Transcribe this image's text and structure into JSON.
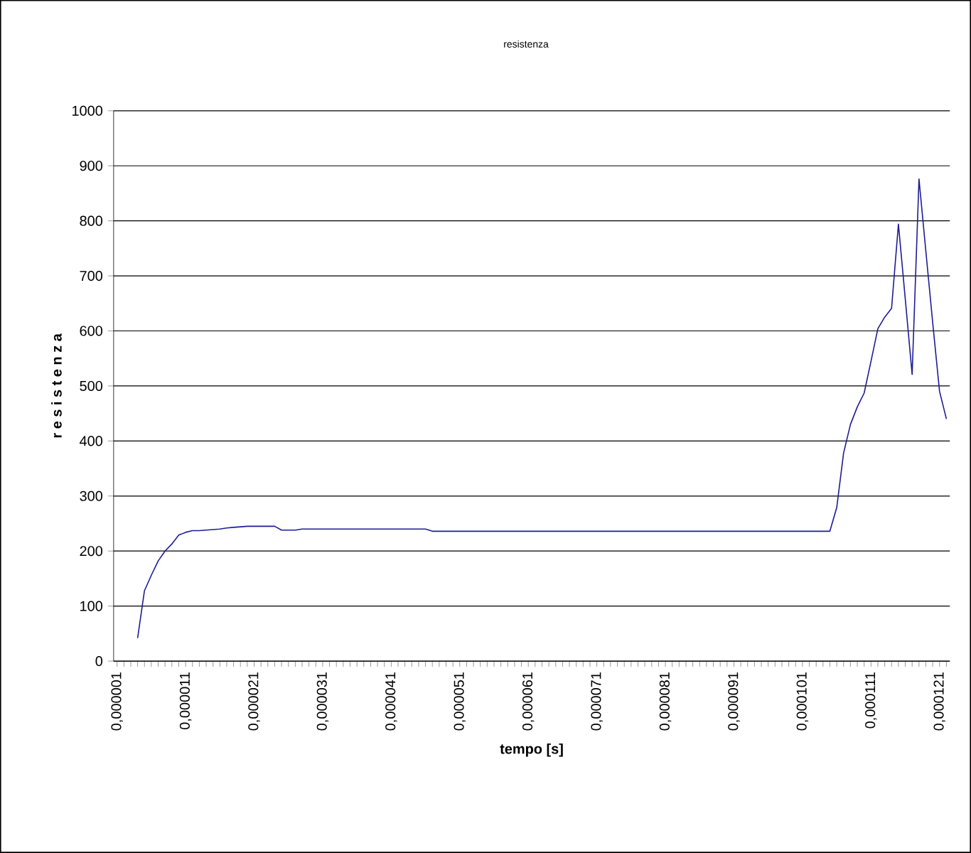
{
  "chart_data": {
    "type": "line",
    "title": "resistenza",
    "xlabel": "tempo [s]",
    "ylabel": "r e s i s t e n z a",
    "categories": [
      "0,000001",
      null,
      null,
      null,
      null,
      null,
      null,
      null,
      null,
      null,
      "0,000011",
      null,
      null,
      null,
      null,
      null,
      null,
      null,
      null,
      null,
      "0,000021",
      null,
      null,
      null,
      null,
      null,
      null,
      null,
      null,
      null,
      "0,000031",
      null,
      null,
      null,
      null,
      null,
      null,
      null,
      null,
      null,
      "0,000041",
      null,
      null,
      null,
      null,
      null,
      null,
      null,
      null,
      null,
      "0,000051",
      null,
      null,
      null,
      null,
      null,
      null,
      null,
      null,
      null,
      "0,000061",
      null,
      null,
      null,
      null,
      null,
      null,
      null,
      null,
      null,
      "0,000071",
      null,
      null,
      null,
      null,
      null,
      null,
      null,
      null,
      null,
      "0,000081",
      null,
      null,
      null,
      null,
      null,
      null,
      null,
      null,
      null,
      "0,000091",
      null,
      null,
      null,
      null,
      null,
      null,
      null,
      null,
      null,
      "0,000101",
      null,
      null,
      null,
      null,
      null,
      null,
      null,
      null,
      null,
      "0,000111",
      null,
      null,
      null,
      null,
      null,
      null,
      null,
      null,
      null,
      "0,000121",
      null
    ],
    "series": [
      {
        "color": "#1c1c96",
        "values": [
          null,
          null,
          null,
          42,
          128,
          156,
          182,
          200,
          213,
          229,
          234,
          237,
          237,
          238,
          239,
          240,
          242,
          243,
          244,
          245,
          245,
          245,
          245,
          245,
          238,
          238,
          238,
          240,
          240,
          240,
          240,
          240,
          240,
          240,
          240,
          240,
          240,
          240,
          240,
          240,
          240,
          240,
          240,
          240,
          240,
          240,
          236,
          236,
          236,
          236,
          236,
          236,
          236,
          236,
          236,
          236,
          236,
          236,
          236,
          236,
          236,
          236,
          236,
          236,
          236,
          236,
          236,
          236,
          236,
          236,
          236,
          236,
          236,
          236,
          236,
          236,
          236,
          236,
          236,
          236,
          236,
          236,
          236,
          236,
          236,
          236,
          236,
          236,
          236,
          236,
          236,
          236,
          236,
          236,
          236,
          236,
          236,
          236,
          236,
          236,
          236,
          236,
          236,
          236,
          236,
          279,
          378,
          430,
          462,
          487,
          545,
          604,
          625,
          641,
          794,
          658,
          521,
          876,
          745,
          615,
          490,
          440
        ]
      }
    ],
    "ylim": [
      0,
      1000
    ],
    "yticks": [
      0,
      100,
      200,
      300,
      400,
      500,
      600,
      700,
      800,
      900,
      1000
    ],
    "grid": "y",
    "line_style": "solid",
    "marker": "none"
  }
}
